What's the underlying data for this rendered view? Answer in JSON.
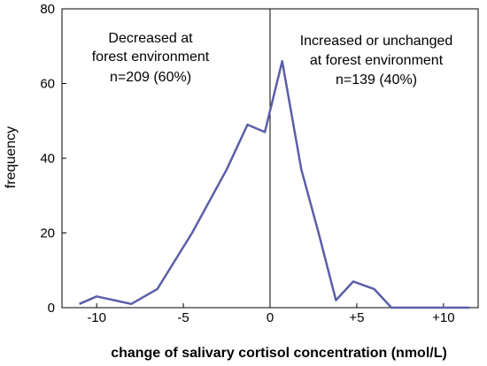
{
  "chart_data": {
    "type": "line",
    "title": "",
    "xlabel": "change of salivary cortisol concentration (nmol/L)",
    "ylabel": "frequency",
    "xlim": [
      -12,
      12
    ],
    "ylim": [
      0,
      80
    ],
    "x_ticks": [
      -10,
      -5,
      0,
      5,
      10
    ],
    "x_tick_labels": [
      "-10",
      "-5",
      "0",
      "+5",
      "+10"
    ],
    "y_ticks": [
      0,
      20,
      40,
      60,
      80
    ],
    "y_tick_labels": [
      "0",
      "20",
      "40",
      "60",
      "80"
    ],
    "series_color": "#5b5ea8",
    "series": [
      {
        "x": [
          -11,
          -10,
          -8,
          -6.5,
          -4.5,
          -2.5,
          -1.3,
          -0.3,
          0.7,
          1.8,
          2.8,
          3.8,
          4.8,
          6,
          7,
          8,
          9,
          10,
          11.5
        ],
        "values": [
          1,
          3,
          1,
          5,
          20,
          37,
          49,
          47,
          66,
          37,
          20,
          2,
          7,
          5,
          0,
          0,
          0,
          0,
          0
        ]
      }
    ],
    "reference_line_x": 0,
    "grid": false,
    "annotations": {
      "left": [
        "Decreased at",
        "forest environment",
        "n=209 (60%)"
      ],
      "right": [
        "Increased or unchanged",
        "at forest environment",
        "n=139 (40%)"
      ]
    }
  }
}
